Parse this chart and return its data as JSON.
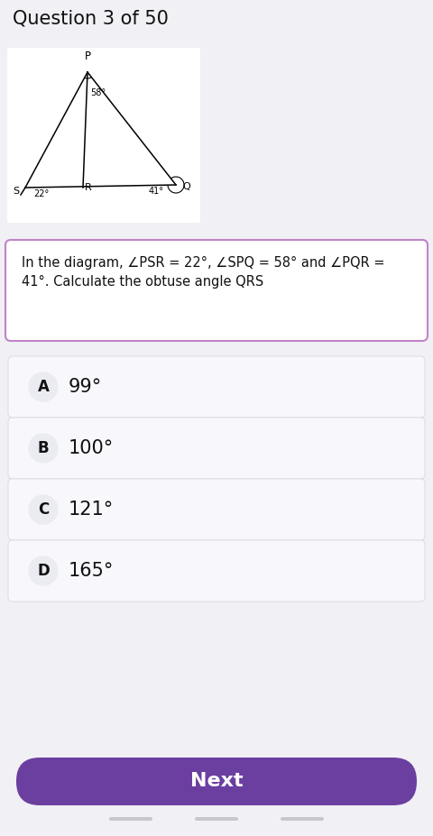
{
  "title": "Question 3 of 50",
  "question_text": "In the diagram, ∠PSR = 22°, ∠SPQ = 58° and ∠PQR =\n41°. Calculate the obtuse angle QRS",
  "options": [
    {
      "label": "A",
      "text": "99°"
    },
    {
      "label": "B",
      "text": "100°"
    },
    {
      "label": "C",
      "text": "121°"
    },
    {
      "label": "D",
      "text": "165°"
    }
  ],
  "next_button_text": "Next",
  "bg_color": "#f0f0f5",
  "question_border_color": "#c084c8",
  "next_btn_color": "#6b3fa0",
  "title_font_size": 15,
  "option_font_size": 15,
  "diagram_bg": "#ffffff",
  "angle_SPQ": "58°",
  "angle_PSR": "22°",
  "angle_PQR": "41°"
}
